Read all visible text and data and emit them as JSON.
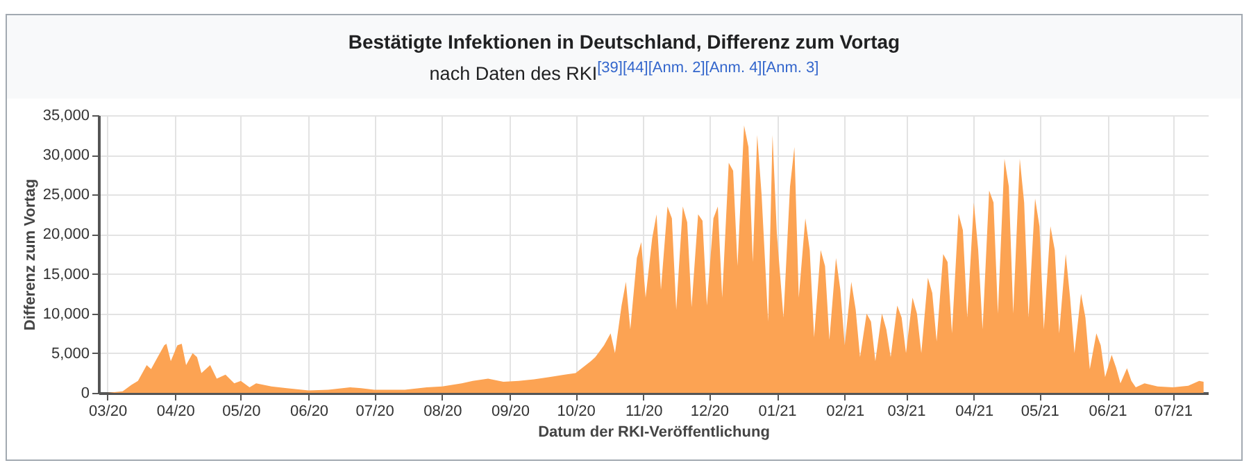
{
  "chart_data": {
    "type": "area",
    "title": "Bestätigte Infektionen in Deutschland, Differenz zum Vortag",
    "subtitle": "nach Daten des RKI$^{[39][44][Anm. 2][Anm. 4][Anm. 3]}$",
    "xlabel": "Datum der RKI-Veröffentlichung",
    "ylabel": "Differenz zum Vortag",
    "grid": true,
    "x": [
      "2020-03-01",
      "2020-03-08",
      "2020-03-12",
      "2020-03-15",
      "2020-03-19",
      "2020-03-21",
      "2020-03-24",
      "2020-03-27",
      "2020-03-28",
      "2020-03-30",
      "2020-04-02",
      "2020-04-04",
      "2020-04-06",
      "2020-04-09",
      "2020-04-11",
      "2020-04-13",
      "2020-04-17",
      "2020-04-20",
      "2020-04-24",
      "2020-04-28",
      "2020-05-01",
      "2020-05-05",
      "2020-05-08",
      "2020-05-15",
      "2020-05-22",
      "2020-06-01",
      "2020-06-10",
      "2020-06-20",
      "2020-06-25",
      "2020-07-01",
      "2020-07-15",
      "2020-07-25",
      "2020-08-01",
      "2020-08-10",
      "2020-08-15",
      "2020-08-22",
      "2020-08-29",
      "2020-09-05",
      "2020-09-12",
      "2020-09-19",
      "2020-09-26",
      "2020-10-01",
      "2020-10-08",
      "2020-10-10",
      "2020-10-14",
      "2020-10-17",
      "2020-10-19",
      "2020-10-22",
      "2020-10-24",
      "2020-10-26",
      "2020-10-29",
      "2020-10-31",
      "2020-11-02",
      "2020-11-05",
      "2020-11-07",
      "2020-11-09",
      "2020-11-12",
      "2020-11-14",
      "2020-11-16",
      "2020-11-19",
      "2020-11-21",
      "2020-11-23",
      "2020-11-26",
      "2020-11-28",
      "2020-11-30",
      "2020-12-03",
      "2020-12-05",
      "2020-12-07",
      "2020-12-10",
      "2020-12-12",
      "2020-12-14",
      "2020-12-17",
      "2020-12-19",
      "2020-12-21",
      "2020-12-23",
      "2020-12-25",
      "2020-12-28",
      "2020-12-30",
      "2021-01-01",
      "2021-01-04",
      "2021-01-07",
      "2021-01-09",
      "2021-01-11",
      "2021-01-14",
      "2021-01-16",
      "2021-01-18",
      "2021-01-21",
      "2021-01-23",
      "2021-01-25",
      "2021-01-28",
      "2021-01-30",
      "2021-02-01",
      "2021-02-04",
      "2021-02-06",
      "2021-02-08",
      "2021-02-11",
      "2021-02-13",
      "2021-02-15",
      "2021-02-18",
      "2021-02-20",
      "2021-02-22",
      "2021-02-25",
      "2021-02-27",
      "2021-03-01",
      "2021-03-04",
      "2021-03-06",
      "2021-03-08",
      "2021-03-11",
      "2021-03-13",
      "2021-03-15",
      "2021-03-18",
      "2021-03-20",
      "2021-03-22",
      "2021-03-25",
      "2021-03-27",
      "2021-03-29",
      "2021-04-01",
      "2021-04-03",
      "2021-04-05",
      "2021-04-08",
      "2021-04-10",
      "2021-04-12",
      "2021-04-15",
      "2021-04-17",
      "2021-04-19",
      "2021-04-22",
      "2021-04-24",
      "2021-04-26",
      "2021-04-29",
      "2021-05-01",
      "2021-05-03",
      "2021-05-06",
      "2021-05-08",
      "2021-05-10",
      "2021-05-13",
      "2021-05-15",
      "2021-05-17",
      "2021-05-20",
      "2021-05-22",
      "2021-05-24",
      "2021-05-27",
      "2021-05-29",
      "2021-05-31",
      "2021-06-03",
      "2021-06-05",
      "2021-06-07",
      "2021-06-10",
      "2021-06-12",
      "2021-06-14",
      "2021-06-18",
      "2021-06-24",
      "2021-07-01",
      "2021-07-08",
      "2021-07-13",
      "2021-07-15"
    ],
    "series": [
      {
        "color": "#fca353",
        "values": [
          0,
          200,
          1000,
          1500,
          3500,
          3000,
          4500,
          6000,
          6200,
          4000,
          6000,
          6200,
          3500,
          5000,
          4500,
          2500,
          3500,
          1800,
          2300,
          1200,
          1500,
          700,
          1200,
          800,
          600,
          300,
          400,
          700,
          600,
          400,
          400,
          700,
          800,
          1200,
          1500,
          1800,
          1400,
          1500,
          1700,
          2000,
          2300,
          2500,
          4000,
          4500,
          6000,
          7500,
          5000,
          11000,
          14000,
          8000,
          17000,
          19000,
          12000,
          19500,
          22500,
          13000,
          23500,
          22000,
          10500,
          23500,
          21500,
          10800,
          22500,
          21700,
          11000,
          22000,
          23500,
          12000,
          29000,
          28000,
          16000,
          33700,
          31000,
          16500,
          32500,
          25000,
          9000,
          32500,
          20000,
          9500,
          26000,
          31000,
          12000,
          22000,
          18000,
          7000,
          18000,
          16000,
          6700,
          17000,
          13000,
          6000,
          14000,
          10500,
          4500,
          10000,
          9000,
          4000,
          10000,
          8000,
          4500,
          11000,
          9500,
          5000,
          12000,
          10000,
          5000,
          14500,
          12600,
          6500,
          17500,
          16500,
          7500,
          22600,
          20500,
          9500,
          24000,
          18000,
          8000,
          25500,
          24000,
          10000,
          29500,
          26000,
          10000,
          29500,
          24000,
          9500,
          24500,
          21000,
          8000,
          21000,
          18000,
          7500,
          17500,
          12000,
          5000,
          12500,
          9500,
          3000,
          7500,
          6000,
          2000,
          4800,
          3200,
          1200,
          3100,
          1500,
          700,
          1200,
          800,
          700,
          900,
          1500,
          1400
        ]
      }
    ],
    "xlim": [
      "2020-02-26",
      "2021-07-17"
    ],
    "xticks": [
      {
        "value": "2020-03-01",
        "label": "03/20"
      },
      {
        "value": "2020-04-01",
        "label": "04/20"
      },
      {
        "value": "2020-05-01",
        "label": "05/20"
      },
      {
        "value": "2020-06-01",
        "label": "06/20"
      },
      {
        "value": "2020-07-01",
        "label": "07/20"
      },
      {
        "value": "2020-08-01",
        "label": "08/20"
      },
      {
        "value": "2020-09-01",
        "label": "09/20"
      },
      {
        "value": "2020-10-01",
        "label": "10/20"
      },
      {
        "value": "2020-11-01",
        "label": "11/20"
      },
      {
        "value": "2020-12-01",
        "label": "12/20"
      },
      {
        "value": "2021-01-01",
        "label": "01/21"
      },
      {
        "value": "2021-02-01",
        "label": "02/21"
      },
      {
        "value": "2021-03-01",
        "label": "03/21"
      },
      {
        "value": "2021-04-01",
        "label": "04/21"
      },
      {
        "value": "2021-05-01",
        "label": "05/21"
      },
      {
        "value": "2021-06-01",
        "label": "06/21"
      },
      {
        "value": "2021-07-01",
        "label": "07/21"
      }
    ],
    "ylim": [
      0,
      35000
    ],
    "yticks": [
      {
        "value": 0,
        "label": "0"
      },
      {
        "value": 5000,
        "label": "5,000"
      },
      {
        "value": 10000,
        "label": "10,000"
      },
      {
        "value": 15000,
        "label": "15,000"
      },
      {
        "value": 20000,
        "label": "20,000"
      },
      {
        "value": 25000,
        "label": "25,000"
      },
      {
        "value": 30000,
        "label": "30,000"
      },
      {
        "value": 35000,
        "label": "35,000"
      }
    ]
  }
}
